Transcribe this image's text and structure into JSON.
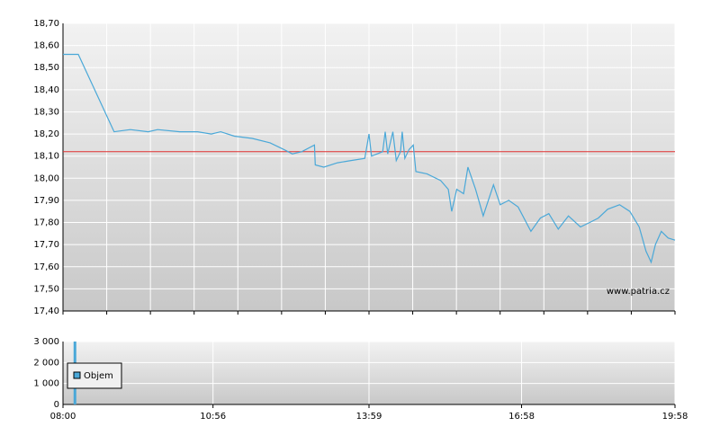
{
  "chart_data": [
    {
      "type": "line",
      "xlim": [
        "08:00",
        "19:58"
      ],
      "ylim": [
        17.4,
        18.7
      ],
      "yticks": [
        {
          "value": 17.4,
          "label": "17,40"
        },
        {
          "value": 17.5,
          "label": "17,50"
        },
        {
          "value": 17.6,
          "label": "17,60"
        },
        {
          "value": 17.7,
          "label": "17,70"
        },
        {
          "value": 17.8,
          "label": "17,80"
        },
        {
          "value": 17.9,
          "label": "17,90"
        },
        {
          "value": 18.0,
          "label": "18,00"
        },
        {
          "value": 18.1,
          "label": "18,10"
        },
        {
          "value": 18.2,
          "label": "18,20"
        },
        {
          "value": 18.3,
          "label": "18,30"
        },
        {
          "value": 18.4,
          "label": "18,40"
        },
        {
          "value": 18.5,
          "label": "18,50"
        },
        {
          "value": 18.6,
          "label": "18,60"
        },
        {
          "value": 18.7,
          "label": "18,70"
        }
      ],
      "grid": true,
      "reference_line": 18.12,
      "reference_color": "#e03030",
      "watermark": "www.patria.cz",
      "color": "#4aa8d8",
      "x": [
        "08:00",
        "08:18",
        "09:00",
        "09:19",
        "09:40",
        "09:51",
        "10:17",
        "10:38",
        "10:54",
        "11:05",
        "11:21",
        "11:42",
        "12:03",
        "12:19",
        "12:29",
        "12:40",
        "12:55",
        "12:56",
        "13:06",
        "13:22",
        "13:38",
        "13:54",
        "13:59",
        "14:02",
        "14:15",
        "14:18",
        "14:21",
        "14:27",
        "14:31",
        "14:36",
        "14:38",
        "14:41",
        "14:46",
        "14:51",
        "14:54",
        "15:07",
        "15:23",
        "15:32",
        "15:36",
        "15:42",
        "15:50",
        "15:55",
        "16:04",
        "16:13",
        "16:25",
        "16:33",
        "16:43",
        "16:54",
        "17:09",
        "17:20",
        "17:30",
        "17:41",
        "17:53",
        "18:07",
        "18:18",
        "18:28",
        "18:39",
        "18:53",
        "19:05",
        "19:16",
        "19:24",
        "19:30",
        "19:35",
        "19:42",
        "19:50",
        "19:58"
      ],
      "values": [
        18.56,
        18.56,
        18.21,
        18.22,
        18.21,
        18.22,
        18.21,
        18.21,
        18.2,
        18.21,
        18.19,
        18.18,
        18.16,
        18.13,
        18.11,
        18.12,
        18.15,
        18.06,
        18.05,
        18.07,
        18.08,
        18.09,
        18.2,
        18.1,
        18.12,
        18.21,
        18.11,
        18.21,
        18.08,
        18.12,
        18.21,
        18.09,
        18.13,
        18.15,
        18.03,
        18.02,
        17.99,
        17.95,
        17.85,
        17.95,
        17.93,
        18.05,
        17.95,
        17.83,
        17.97,
        17.88,
        17.9,
        17.87,
        17.76,
        17.82,
        17.84,
        17.77,
        17.83,
        17.78,
        17.8,
        17.82,
        17.86,
        17.88,
        17.85,
        17.78,
        17.67,
        17.62,
        17.7,
        17.76,
        17.73,
        17.72
      ]
    },
    {
      "type": "bar",
      "xlim": [
        "08:00",
        "19:58"
      ],
      "xticks": [
        "08:00",
        "10:56",
        "13:59",
        "16:58",
        "19:58"
      ],
      "ylim": [
        0,
        3000
      ],
      "yticks": [
        0,
        {
          "value": 1000,
          "label": "1 000"
        },
        {
          "value": 2000,
          "label": "2 000"
        },
        {
          "value": 3000,
          "label": "3 000"
        }
      ],
      "grid": true,
      "legend": "upper-left",
      "series": [
        {
          "name": "Objem",
          "color": "#4aa8d8",
          "x": [
            "08:14"
          ],
          "values": [
            3000
          ]
        }
      ]
    }
  ]
}
